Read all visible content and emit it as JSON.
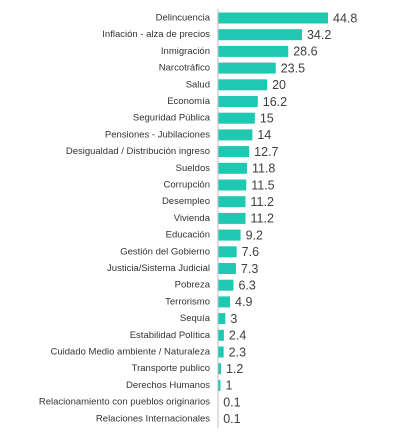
{
  "chart_data": {
    "type": "bar",
    "orientation": "horizontal",
    "color": "#1ec8b1",
    "categories": [
      "Delincuencia",
      "Inflación - alza de precios",
      "Inmigración",
      "Narcotráfico",
      "Salud",
      "Economía",
      "Seguridad Pública",
      "Pensiones - Jubilaciones",
      "Desigualdad / Distribución ingreso",
      "Sueldos",
      "Corrupción",
      "Desempleo",
      "Vivienda",
      "Educación",
      "Gestión del Gobierno",
      "Justicia/Sistema Judicial",
      "Pobreza",
      "Terrorismo",
      "Sequía",
      "Estabilidad Política",
      "Cuidado Medio ambiente / Naturaleza",
      "Transporte publico",
      "Derechos Humanos",
      "Relacionamiento con pueblos originarios",
      "Relaciones Internacionales"
    ],
    "values": [
      44.8,
      34.2,
      28.6,
      23.5,
      20,
      16.2,
      15,
      14,
      12.7,
      11.8,
      11.5,
      11.2,
      11.2,
      9.2,
      7.6,
      7.3,
      6.3,
      4.9,
      3,
      2.4,
      2.3,
      1.2,
      1,
      0.1,
      0.1
    ]
  }
}
